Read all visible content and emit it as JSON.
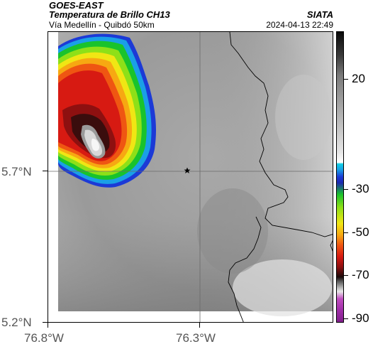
{
  "header": {
    "satellite": "GOES-EAST",
    "product": "Temperatura de Brillo CH13",
    "route": "Vía Medellín - Quibdó 50km",
    "brand": "SIATA",
    "timestamp": "2024-04-13 22:49"
  },
  "axes": {
    "lat_labels": [
      "5.7°N",
      "5.2°N"
    ],
    "lon_labels": [
      "76.8°W",
      "76.3°W"
    ]
  },
  "colorbar": {
    "ticks": [
      "20",
      "-30",
      "-50",
      "-70",
      "-90"
    ]
  },
  "marker": {
    "icon": "star-icon"
  }
}
